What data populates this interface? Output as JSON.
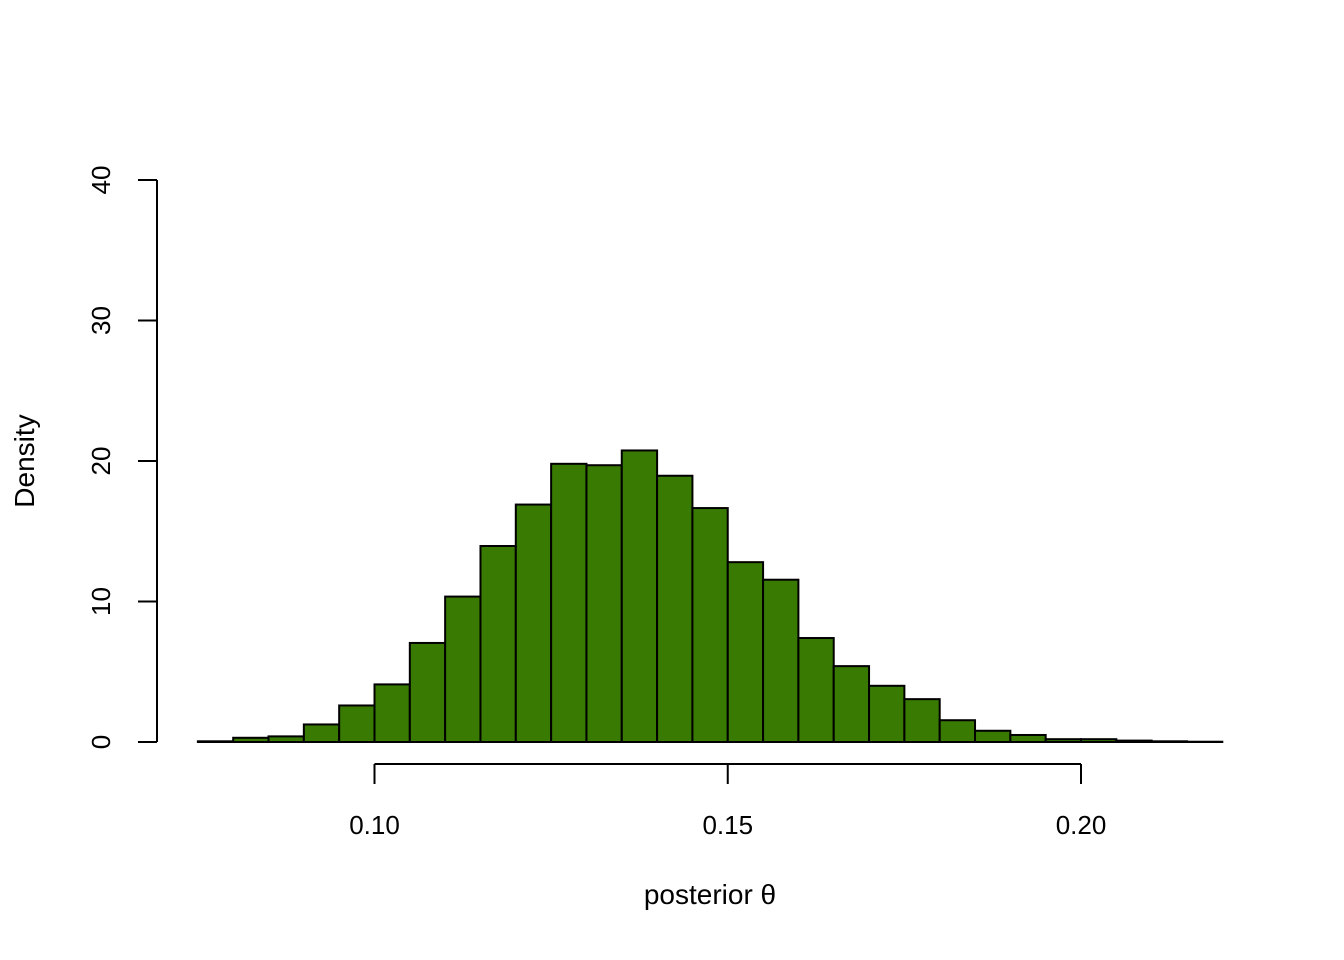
{
  "chart_data": {
    "type": "bar",
    "title": "",
    "xlabel": "posterior θ",
    "ylabel": "Density",
    "xlim": [
      0.075,
      0.22
    ],
    "ylim": [
      0,
      40
    ],
    "x_ticks": [
      "0.10",
      "0.15",
      "0.20"
    ],
    "x_tick_values": [
      0.1,
      0.15,
      0.2
    ],
    "y_ticks": [
      "0",
      "10",
      "20",
      "30",
      "40"
    ],
    "y_tick_values": [
      0,
      10,
      20,
      30,
      40
    ],
    "bin_width": 0.005,
    "bin_starts": [
      0.075,
      0.08,
      0.085,
      0.09,
      0.095,
      0.1,
      0.105,
      0.11,
      0.115,
      0.12,
      0.125,
      0.13,
      0.135,
      0.14,
      0.145,
      0.15,
      0.155,
      0.16,
      0.165,
      0.17,
      0.175,
      0.18,
      0.185,
      0.19,
      0.195,
      0.2,
      0.205,
      0.21,
      0.215
    ],
    "values": [
      0.05,
      0.3,
      0.4,
      1.25,
      2.6,
      4.1,
      7.05,
      10.35,
      13.95,
      16.9,
      19.8,
      19.7,
      20.75,
      18.95,
      16.65,
      12.8,
      11.55,
      7.4,
      5.4,
      4.0,
      3.05,
      1.55,
      0.8,
      0.5,
      0.2,
      0.2,
      0.1,
      0.05,
      0.02
    ],
    "bar_color": "#387a02",
    "grid": false
  }
}
